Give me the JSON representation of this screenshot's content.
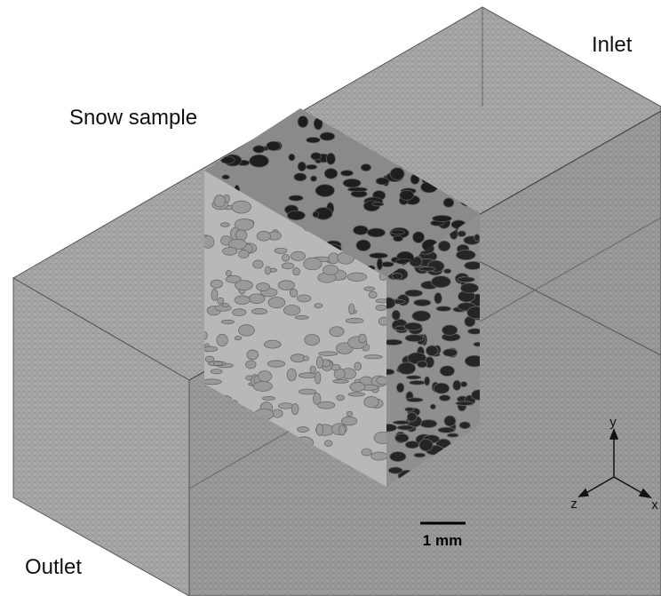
{
  "labels": {
    "inlet": "Inlet",
    "snow_sample": "Snow sample",
    "outlet": "Outlet"
  },
  "scale_bar": "1 mm",
  "axes": {
    "y": "y",
    "z": "z",
    "x": "x"
  }
}
